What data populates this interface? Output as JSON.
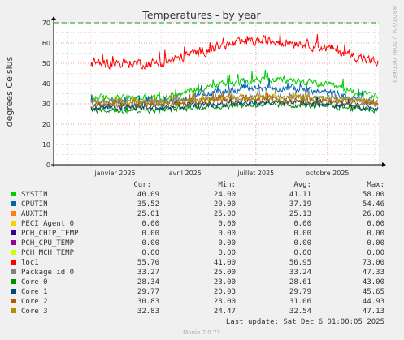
{
  "chart_data": {
    "type": "line",
    "title": "Temperatures - by year",
    "ylabel": "degrees Celsius",
    "watermark": "RRDTOOL / TOBI OETIKER",
    "ylim": [
      0,
      70
    ],
    "yticks": [
      0,
      10,
      20,
      30,
      40,
      50,
      60,
      70
    ],
    "xlim": [
      "2024-10-14",
      "2025-12-06"
    ],
    "xticks": [
      {
        "label": "janvier 2025",
        "date": "2025-01-01"
      },
      {
        "label": "avril 2025",
        "date": "2025-04-01"
      },
      {
        "label": "juillet 2025",
        "date": "2025-07-01"
      },
      {
        "label": "octobre 2025",
        "date": "2025-10-01"
      }
    ],
    "data_start": "2024-12-01",
    "threshold": {
      "value": 70,
      "color": "#00aa00"
    },
    "colors": {
      "background": "#f0f0f0",
      "plot": "#ffffff",
      "grid_minor": "#dddddd",
      "grid_major": "#f0a0a0",
      "axis": "#000000",
      "text": "#333333",
      "footer": "#aaaaaa"
    },
    "series": [
      {
        "name": "SYSTIN",
        "color": "#00cc00",
        "base": 33,
        "trend": 9,
        "noise": 2.5,
        "min": 24.0
      },
      {
        "name": "CPUTIN",
        "color": "#0066b3",
        "base": 30,
        "trend": 8,
        "noise": 2.5,
        "min": 20.0
      },
      {
        "name": "AUXTIN",
        "color": "#ff8000",
        "flat": 25.0
      },
      {
        "name": "PECI Agent 0",
        "color": "#ffcc00",
        "flat": 0
      },
      {
        "name": "PCH_CHIP_TEMP",
        "color": "#330099",
        "flat": 0
      },
      {
        "name": "PCH_CPU_TEMP",
        "color": "#990099",
        "flat": 0
      },
      {
        "name": "PCH_MCH_TEMP",
        "color": "#ccff00",
        "flat": 0
      },
      {
        "name": "loc1",
        "color": "#ff0000",
        "base": 50,
        "trend": 11,
        "noise": 3.5,
        "min": 41.0
      },
      {
        "name": "Package id 0",
        "color": "#808080",
        "base": 31,
        "trend": 2.5,
        "noise": 2,
        "min": 25.0
      },
      {
        "name": "Core 0",
        "color": "#008f00",
        "base": 27,
        "trend": 2.5,
        "noise": 2,
        "min": 23.0
      },
      {
        "name": "Core 1",
        "color": "#00487d",
        "base": 28,
        "trend": 2.5,
        "noise": 2,
        "min": 20.93
      },
      {
        "name": "Core 2",
        "color": "#b35a00",
        "base": 29.5,
        "trend": 2.5,
        "noise": 2,
        "min": 23.0
      },
      {
        "name": "Core 3",
        "color": "#b38f00",
        "base": 31,
        "trend": 2.5,
        "noise": 2,
        "min": 24.47
      }
    ]
  },
  "legend": {
    "headers": {
      "cur": "Cur:",
      "min": "Min:",
      "avg": "Avg:",
      "max": "Max:"
    },
    "rows": [
      {
        "name": "SYSTIN",
        "color": "#00cc00",
        "cur": "40.09",
        "min": "24.00",
        "avg": "41.11",
        "max": "58.00"
      },
      {
        "name": "CPUTIN",
        "color": "#0066b3",
        "cur": "35.52",
        "min": "20.00",
        "avg": "37.19",
        "max": "54.46"
      },
      {
        "name": "AUXTIN",
        "color": "#ff8000",
        "cur": "25.01",
        "min": "25.00",
        "avg": "25.13",
        "max": "26.00"
      },
      {
        "name": "PECI Agent 0",
        "color": "#ffcc00",
        "cur": "0.00",
        "min": "0.00",
        "avg": "0.00",
        "max": "0.00"
      },
      {
        "name": "PCH_CHIP_TEMP",
        "color": "#330099",
        "cur": "0.00",
        "min": "0.00",
        "avg": "0.00",
        "max": "0.00"
      },
      {
        "name": "PCH_CPU_TEMP",
        "color": "#990099",
        "cur": "0.00",
        "min": "0.00",
        "avg": "0.00",
        "max": "0.00"
      },
      {
        "name": "PCH_MCH_TEMP",
        "color": "#ccff00",
        "cur": "0.00",
        "min": "0.00",
        "avg": "0.00",
        "max": "0.00"
      },
      {
        "name": "loc1",
        "color": "#ff0000",
        "cur": "55.70",
        "min": "41.00",
        "avg": "56.95",
        "max": "73.00"
      },
      {
        "name": "Package id 0",
        "color": "#808080",
        "cur": "33.27",
        "min": "25.00",
        "avg": "33.24",
        "max": "47.33"
      },
      {
        "name": "Core 0",
        "color": "#008f00",
        "cur": "28.34",
        "min": "23.00",
        "avg": "28.61",
        "max": "43.00"
      },
      {
        "name": "Core 1",
        "color": "#00487d",
        "cur": "29.77",
        "min": "20.93",
        "avg": "29.79",
        "max": "45.65"
      },
      {
        "name": "Core 2",
        "color": "#b35a00",
        "cur": "30.83",
        "min": "23.00",
        "avg": "31.06",
        "max": "44.93"
      },
      {
        "name": "Core 3",
        "color": "#b38f00",
        "cur": "32.83",
        "min": "24.47",
        "avg": "32.54",
        "max": "47.13"
      }
    ]
  },
  "last_update": "Last update: Sat Dec  6 01:00:05 2025",
  "footer": "Munin 2.0.73"
}
